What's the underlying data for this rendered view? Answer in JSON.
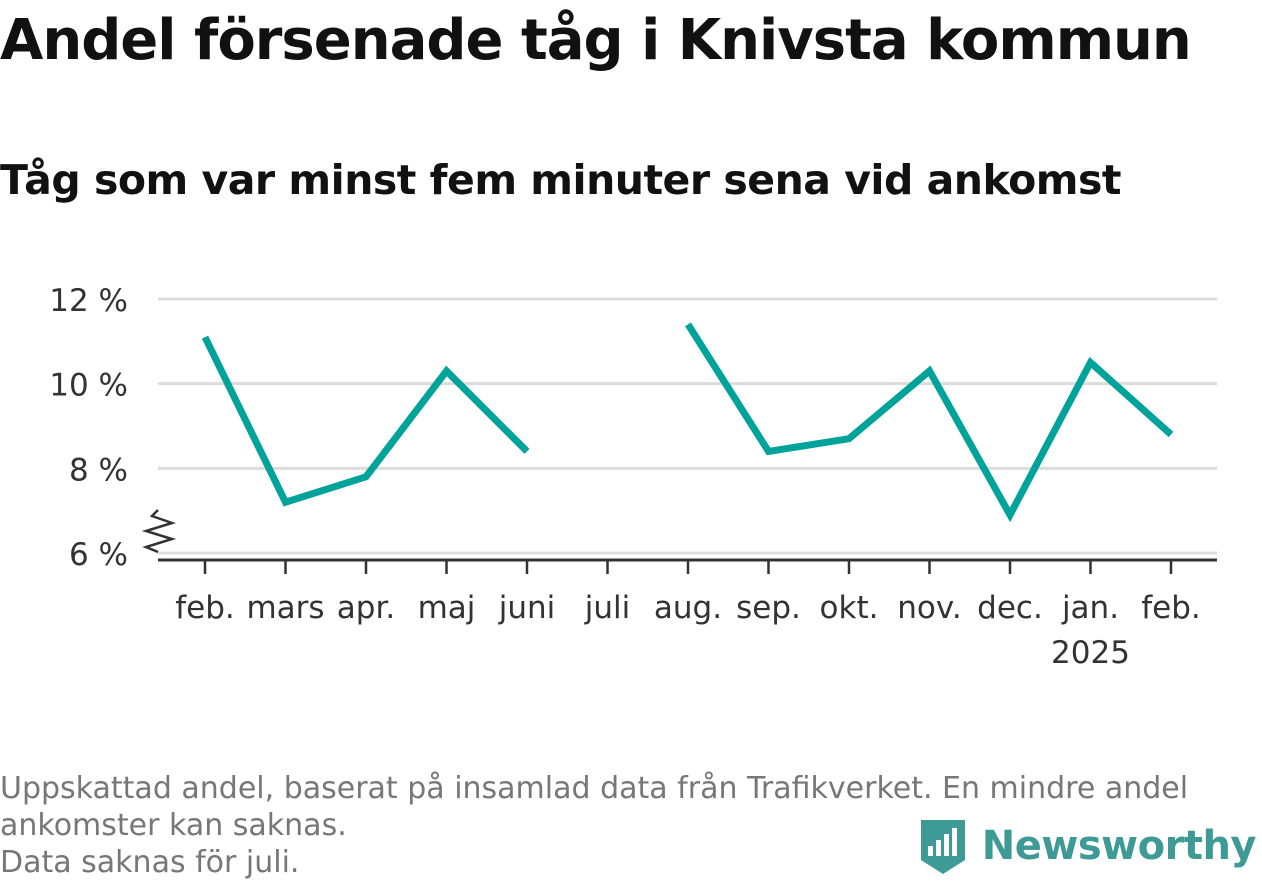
{
  "title": "Andel försenade tåg i Knivsta kommun",
  "subtitle": "Tåg som var minst fem minuter sena vid ankomst",
  "chart_data": {
    "type": "line",
    "categories": [
      "feb.",
      "mars",
      "apr.",
      "maj",
      "juni",
      "juli",
      "aug.",
      "sep.",
      "okt.",
      "nov.",
      "dec.",
      "jan.",
      "feb."
    ],
    "year_labels": [
      "",
      "",
      "",
      "",
      "",
      "",
      "",
      "",
      "",
      "",
      "",
      "2025",
      ""
    ],
    "series": [
      {
        "values": [
          11.1,
          7.2,
          7.8,
          10.3,
          8.4,
          null,
          11.4,
          8.4,
          8.7,
          10.3,
          6.9,
          10.5,
          8.8
        ]
      }
    ],
    "y_ticks": [
      6,
      8,
      10,
      12
    ],
    "y_tick_labels": [
      "6 %",
      "8 %",
      "10 %",
      "12 %"
    ],
    "ylim": [
      6,
      12
    ],
    "axis_break": true,
    "grid": true,
    "line_color": "#00a39a",
    "xlabel": "",
    "ylabel": ""
  },
  "footer": {
    "note": "Uppskattad andel, baserat på insamlad data från Trafikverket. En mindre andel ankomster kan saknas.",
    "missing_note": "Data saknas för juli."
  },
  "brand": {
    "name": "Newsworthy",
    "icon": "bar-chart-badge-icon",
    "color": "#3e9a94"
  }
}
